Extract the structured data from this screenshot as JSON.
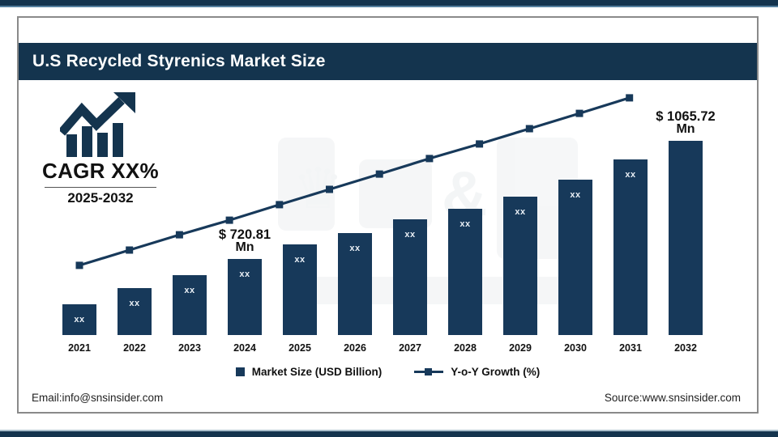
{
  "header": {
    "title": "U.S Recycled Styrenics Market Size"
  },
  "cagr_badge": {
    "label": "CAGR XX%",
    "period": "2025-2032"
  },
  "footer": {
    "email": "Email:info@snsinsider.com",
    "source": "Source:www.snsinsider.com"
  },
  "watermark": {
    "symbol": "&",
    "crown": "♛"
  },
  "colors": {
    "navy": "#14344E",
    "bar": "#17395A",
    "accent_strip": "#55809F"
  },
  "chart_data": {
    "type": "bar",
    "subtype": "bar-line-combo",
    "title": "U.S Recycled Styrenics Market Size",
    "categories": [
      "2021",
      "2022",
      "2023",
      "2024",
      "2025",
      "2026",
      "2027",
      "2028",
      "2029",
      "2030",
      "2031",
      "2032"
    ],
    "series": [
      {
        "name": "Market Size (USD Billion)",
        "type": "bar",
        "bar_value_labels": [
          "xx",
          "xx",
          "xx",
          "xx",
          "xx",
          "xx",
          "xx",
          "xx",
          "xx",
          "xx",
          "xx",
          ""
        ],
        "relative_heights": [
          0.127,
          0.193,
          0.247,
          0.313,
          0.373,
          0.42,
          0.477,
          0.52,
          0.57,
          0.64,
          0.723,
          0.8
        ]
      },
      {
        "name": "Y-o-Y Growth (%)",
        "type": "line",
        "trend": "steady linear increase, point values not labeled",
        "relative_heights": [
          0.287,
          0.35,
          0.413,
          0.473,
          0.537,
          0.6,
          0.663,
          0.727,
          0.787,
          0.85,
          0.913,
          0.977
        ]
      }
    ],
    "annotations": [
      {
        "category": "2024",
        "line1": "$ 720.81",
        "line2": "Mn"
      },
      {
        "category": "2032",
        "line1": "$ 1065.72",
        "line2": "Mn"
      }
    ],
    "legend": [
      {
        "label": "Market Size (USD Billion)",
        "marker": "square"
      },
      {
        "label": "Y-o-Y Growth (%)",
        "marker": "line-square"
      }
    ],
    "axes": {
      "x_labels_visible": true,
      "y_axis_visible": false,
      "gridlines": false
    }
  }
}
